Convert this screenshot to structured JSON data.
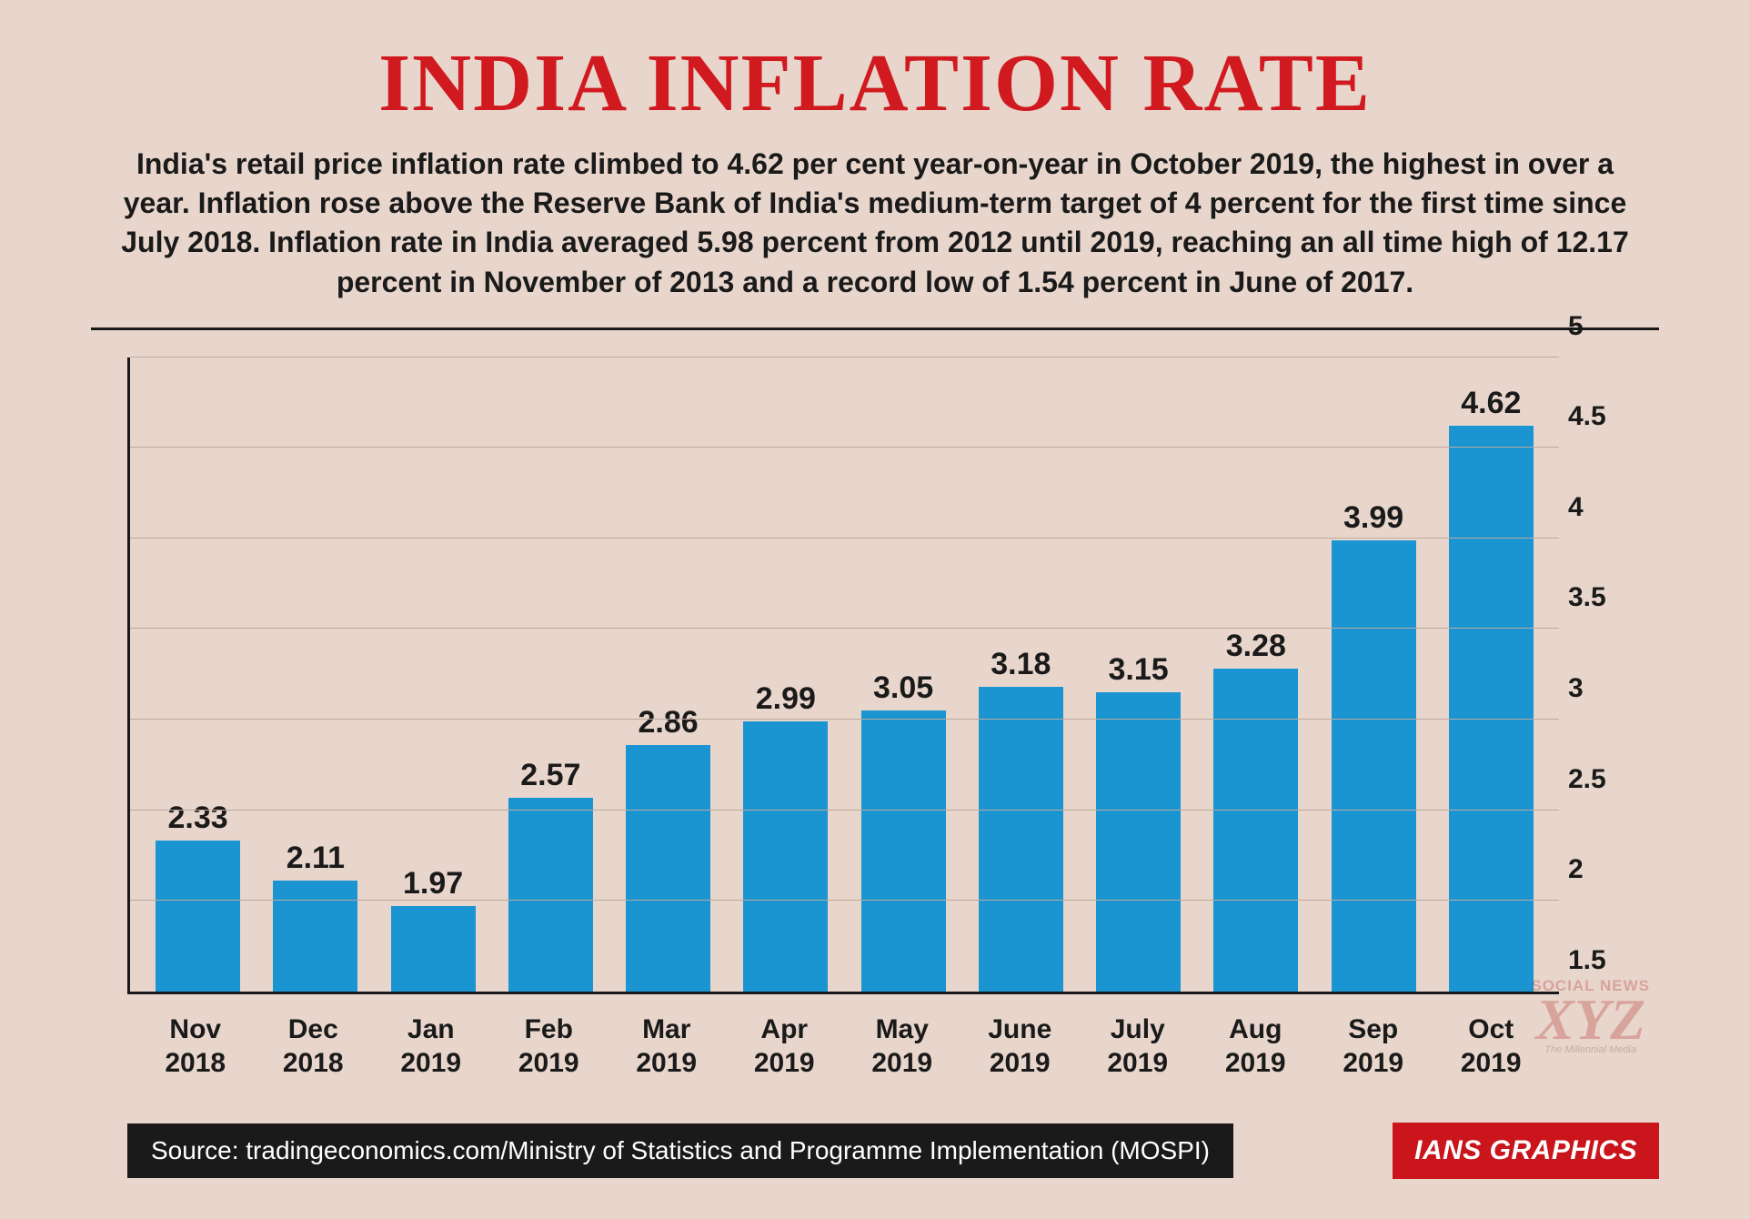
{
  "title": "INDIA INFLATION RATE",
  "subtitle": "India's retail price inflation rate climbed to 4.62 per cent year-on-year in October 2019, the highest in over a year. Inflation rose above the Reserve Bank of India's medium-term target of 4 percent for the first time since July 2018. Inflation rate in India averaged 5.98 percent from 2012 until 2019, reaching an all time high of 12.17 percent in November of 2013 and a record low of 1.54 percent in June of 2017.",
  "chart": {
    "type": "bar",
    "categories": [
      "Nov\n2018",
      "Dec\n2018",
      "Jan\n2019",
      "Feb\n2019",
      "Mar\n2019",
      "Apr\n2019",
      "May\n2019",
      "June\n2019",
      "July\n2019",
      "Aug\n2019",
      "Sep\n2019",
      "Oct\n2019"
    ],
    "values": [
      2.33,
      2.11,
      1.97,
      2.57,
      2.86,
      2.99,
      3.05,
      3.18,
      3.15,
      3.28,
      3.99,
      4.62
    ],
    "value_labels": [
      "2.33",
      "2.11",
      "1.97",
      "2.57",
      "2.86",
      "2.99",
      "3.05",
      "3.18",
      "3.15",
      "3.28",
      "3.99",
      "4.62"
    ],
    "bar_color": "#1a95d1",
    "ylim": [
      1.5,
      5.0
    ],
    "yticks": [
      1.5,
      2,
      2.5,
      3,
      3.5,
      4,
      4.5,
      5
    ],
    "ytick_labels": [
      "1.5",
      "2",
      "2.5",
      "3",
      "3.5",
      "4",
      "4.5",
      "5"
    ],
    "background_color": "#e8d6cc",
    "grid_color": "#bca99f",
    "axis_color": "#1a1a1a",
    "title_color": "#d11a1f",
    "text_color": "#1a1a1a",
    "title_fontsize": 90,
    "subtitle_fontsize": 32,
    "value_label_fontsize": 34,
    "tick_fontsize": 30,
    "bar_width_ratio": 0.72
  },
  "footer": {
    "source": "Source: tradingeconomics.com/Ministry of Statistics and Programme Implementation (MOSPI)",
    "brand": "IANS GRAPHICS"
  },
  "watermark": {
    "top": "SOCIAL NEWS",
    "main": "XYZ",
    "sub": "The Millennial Media"
  }
}
